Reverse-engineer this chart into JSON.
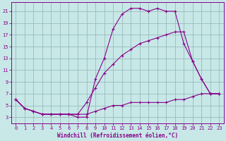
{
  "xlabel": "Windchill (Refroidissement éolien,°C)",
  "bg_color": "#c8e8e8",
  "grid_color": "#99bbbb",
  "line_color": "#880088",
  "xlim": [
    -0.5,
    23.5
  ],
  "ylim": [
    2,
    22.5
  ],
  "xticks": [
    0,
    1,
    2,
    3,
    4,
    5,
    6,
    7,
    8,
    9,
    10,
    11,
    12,
    13,
    14,
    15,
    16,
    17,
    18,
    19,
    20,
    21,
    22,
    23
  ],
  "yticks": [
    3,
    5,
    7,
    9,
    11,
    13,
    15,
    17,
    19,
    21
  ],
  "upper_x": [
    0,
    1,
    2,
    3,
    4,
    5,
    6,
    7,
    8,
    9,
    10,
    11,
    12,
    13,
    14,
    15,
    16,
    17,
    18,
    19,
    20,
    21,
    22,
    23
  ],
  "upper_y": [
    6.0,
    4.5,
    4.0,
    3.5,
    3.5,
    3.5,
    3.5,
    3.0,
    3.0,
    9.5,
    13.0,
    18.0,
    20.5,
    21.5,
    21.5,
    21.0,
    21.5,
    21.0,
    21.0,
    15.5,
    12.5,
    9.5,
    7.0,
    7.0
  ],
  "middle_x": [
    0,
    1,
    2,
    3,
    4,
    5,
    6,
    7,
    8,
    9,
    10,
    11,
    12,
    13,
    14,
    15,
    16,
    17,
    18,
    19,
    20,
    21,
    22,
    23
  ],
  "middle_y": [
    6.0,
    4.5,
    4.0,
    3.5,
    3.5,
    3.5,
    3.5,
    3.5,
    5.5,
    8.0,
    10.5,
    12.0,
    13.5,
    14.5,
    15.5,
    16.0,
    16.5,
    17.0,
    17.5,
    17.5,
    12.5,
    9.5,
    7.0,
    7.0
  ],
  "lower_x": [
    0,
    1,
    2,
    3,
    4,
    5,
    6,
    7,
    8,
    9,
    10,
    11,
    12,
    13,
    14,
    15,
    16,
    17,
    18,
    19,
    20,
    21,
    22,
    23
  ],
  "lower_y": [
    6.0,
    4.5,
    4.0,
    3.5,
    3.5,
    3.5,
    3.5,
    3.5,
    3.5,
    4.0,
    4.5,
    5.0,
    5.0,
    5.5,
    5.5,
    5.5,
    5.5,
    5.5,
    6.0,
    6.0,
    6.5,
    7.0,
    7.0,
    7.0
  ]
}
